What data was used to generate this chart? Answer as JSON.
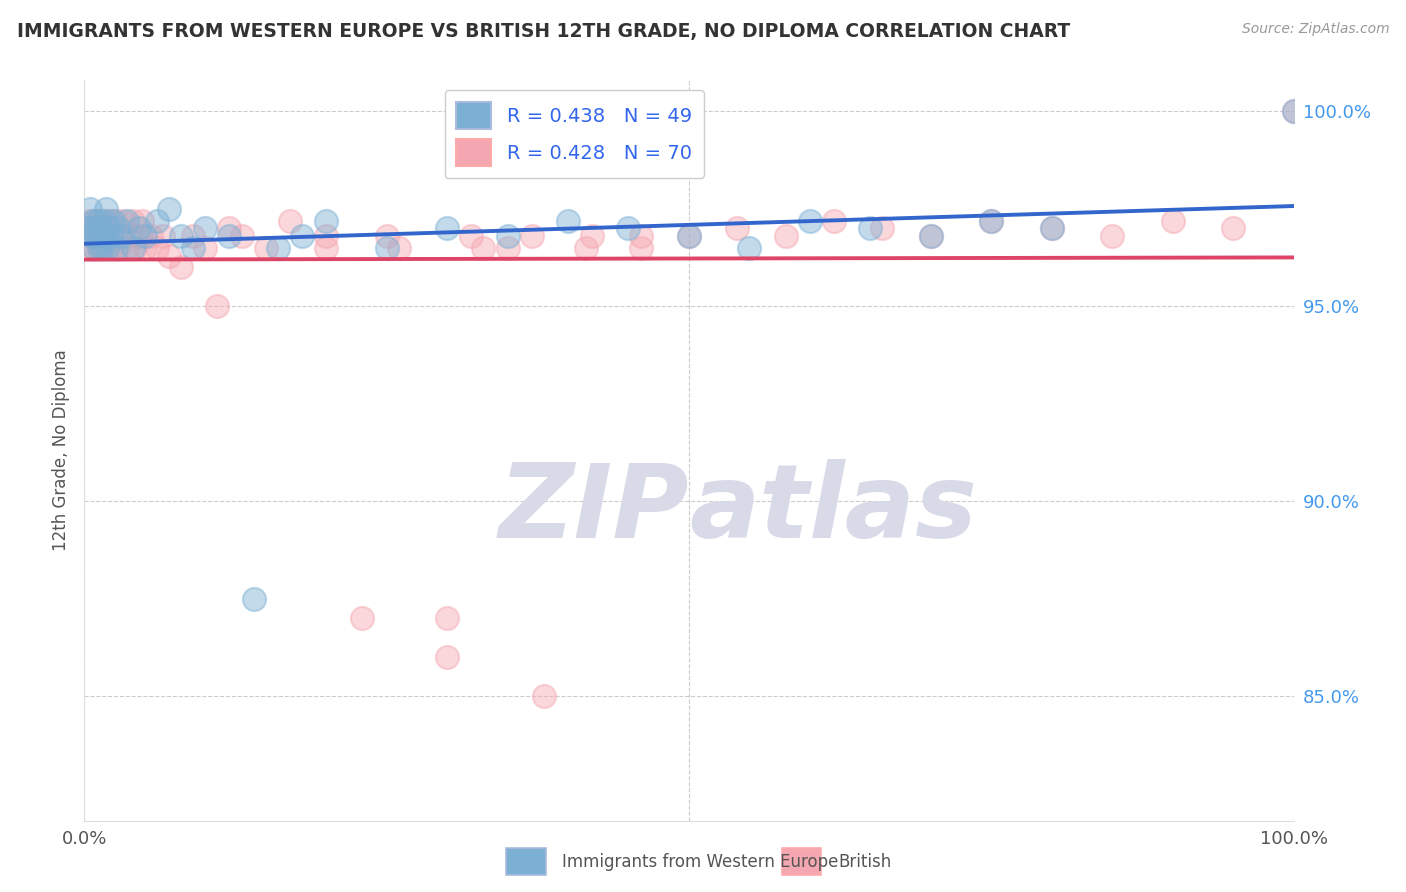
{
  "title": "IMMIGRANTS FROM WESTERN EUROPE VS BRITISH 12TH GRADE, NO DIPLOMA CORRELATION CHART",
  "source": "Source: ZipAtlas.com",
  "ylabel": "12th Grade, No Diploma",
  "legend_blue_r": "R = 0.438",
  "legend_blue_n": "N = 49",
  "legend_pink_r": "R = 0.428",
  "legend_pink_n": "N = 70",
  "blue_color": "#7BAFD4",
  "pink_color": "#F4A7B0",
  "blue_line_color": "#3366CC",
  "pink_line_color": "#DD4466",
  "watermark_color": "#D8DAE8",
  "background_color": "#FFFFFF",
  "grid_color": "#CCCCCC",
  "xlim": [
    0.0,
    1.0
  ],
  "ylim": [
    0.818,
    1.008
  ],
  "yticks": [
    0.85,
    0.9,
    0.95,
    1.0
  ],
  "ytick_labels": [
    "85.0%",
    "90.0%",
    "95.0%",
    "100.0%"
  ],
  "blue_scatter_x": [
    0.003,
    0.005,
    0.006,
    0.007,
    0.008,
    0.009,
    0.01,
    0.011,
    0.012,
    0.013,
    0.014,
    0.015,
    0.016,
    0.017,
    0.018,
    0.019,
    0.02,
    0.022,
    0.024,
    0.026,
    0.028,
    0.03,
    0.035,
    0.04,
    0.045,
    0.05,
    0.06,
    0.07,
    0.08,
    0.09,
    0.1,
    0.12,
    0.14,
    0.16,
    0.18,
    0.2,
    0.25,
    0.3,
    0.35,
    0.4,
    0.45,
    0.5,
    0.55,
    0.6,
    0.65,
    0.7,
    0.75,
    0.8,
    1.0
  ],
  "blue_scatter_y": [
    0.97,
    0.975,
    0.968,
    0.972,
    0.965,
    0.97,
    0.968,
    0.972,
    0.965,
    0.97,
    0.968,
    0.965,
    0.972,
    0.968,
    0.975,
    0.965,
    0.97,
    0.968,
    0.972,
    0.965,
    0.97,
    0.968,
    0.972,
    0.965,
    0.97,
    0.968,
    0.972,
    0.975,
    0.968,
    0.965,
    0.97,
    0.968,
    0.875,
    0.965,
    0.968,
    0.972,
    0.965,
    0.97,
    0.968,
    0.972,
    0.97,
    0.968,
    0.965,
    0.972,
    0.97,
    0.968,
    0.972,
    0.97,
    1.0
  ],
  "pink_scatter_x": [
    0.003,
    0.005,
    0.006,
    0.007,
    0.008,
    0.009,
    0.01,
    0.011,
    0.012,
    0.013,
    0.014,
    0.015,
    0.016,
    0.017,
    0.018,
    0.019,
    0.02,
    0.022,
    0.024,
    0.026,
    0.028,
    0.03,
    0.032,
    0.035,
    0.038,
    0.04,
    0.042,
    0.045,
    0.048,
    0.05,
    0.055,
    0.06,
    0.065,
    0.07,
    0.08,
    0.09,
    0.1,
    0.11,
    0.12,
    0.13,
    0.15,
    0.17,
    0.2,
    0.23,
    0.26,
    0.3,
    0.32,
    0.35,
    0.38,
    0.42,
    0.46,
    0.5,
    0.54,
    0.58,
    0.62,
    0.66,
    0.7,
    0.75,
    0.8,
    0.85,
    0.9,
    0.95,
    1.0,
    0.2,
    0.25,
    0.3,
    0.33,
    0.37,
    0.415,
    0.46
  ],
  "pink_scatter_y": [
    0.97,
    0.972,
    0.965,
    0.968,
    0.972,
    0.965,
    0.968,
    0.972,
    0.965,
    0.968,
    0.97,
    0.965,
    0.972,
    0.968,
    0.965,
    0.968,
    0.972,
    0.965,
    0.968,
    0.972,
    0.965,
    0.968,
    0.972,
    0.965,
    0.968,
    0.972,
    0.965,
    0.968,
    0.972,
    0.965,
    0.968,
    0.965,
    0.968,
    0.963,
    0.96,
    0.968,
    0.965,
    0.95,
    0.97,
    0.968,
    0.965,
    0.972,
    0.968,
    0.87,
    0.965,
    0.86,
    0.968,
    0.965,
    0.85,
    0.968,
    0.965,
    0.968,
    0.97,
    0.968,
    0.972,
    0.97,
    0.968,
    0.972,
    0.97,
    0.968,
    0.972,
    0.97,
    1.0,
    0.965,
    0.968,
    0.87,
    0.965,
    0.968,
    0.965,
    0.968
  ]
}
